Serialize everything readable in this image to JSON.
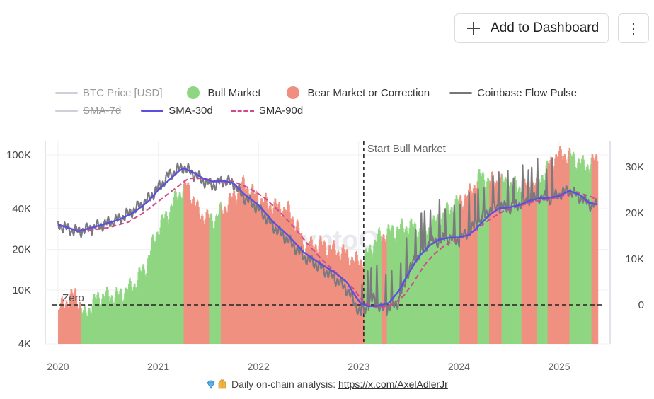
{
  "header": {
    "add_label": "Add to Dashboard",
    "plus_icon": "plus-icon",
    "more_icon": "kebab-menu-icon"
  },
  "legend": [
    {
      "label": "BTC Price [USD]",
      "type": "line",
      "color": "#cfcfd8",
      "hidden": true
    },
    {
      "label": "Bull Market",
      "type": "dot",
      "color": "#8ed681",
      "hidden": false
    },
    {
      "label": "Bear Market or Correction",
      "type": "dot",
      "color": "#ef8f80",
      "hidden": false
    },
    {
      "label": "Coinbase Flow Pulse",
      "type": "line",
      "color": "#777777",
      "hidden": false
    },
    {
      "label": "SMA-7d",
      "type": "line",
      "color": "#cfcfd8",
      "hidden": true
    },
    {
      "label": "SMA-30d",
      "type": "line",
      "color": "#5b4fe0",
      "hidden": false
    },
    {
      "label": "SMA-90d",
      "type": "dash",
      "color": "#d14a8b",
      "hidden": false
    }
  ],
  "annotations": {
    "zero_label": "Zero",
    "start_bull_label": "Start Bull Market",
    "start_bull_date": 2023.05,
    "watermark": "CryptoQuant"
  },
  "footer": {
    "text": "Daily on-chain analysis: ",
    "link": "https://x.com/AxelAdlerJr"
  },
  "chart_data": {
    "type": "area",
    "x_ticks": [
      2020,
      2021,
      2022,
      2023,
      2024,
      2025
    ],
    "x_tick_labels": [
      "2020",
      "2021",
      "2022",
      "2023",
      "2024",
      "2025"
    ],
    "xlim": [
      2019.95,
      2025.5
    ],
    "left_axis": {
      "scale": "log",
      "ticks": [
        4000,
        10000,
        20000,
        40000,
        100000
      ],
      "tick_labels": [
        "4K",
        "10K",
        "20K",
        "40K",
        "100K"
      ],
      "ylim": [
        4000,
        120000
      ]
    },
    "right_axis": {
      "scale": "linear",
      "ticks": [
        0,
        10000,
        20000,
        30000
      ],
      "tick_labels": [
        "0",
        "10K",
        "20K",
        "30K"
      ],
      "ylim": [
        -8500,
        35000
      ]
    },
    "regimes": [
      {
        "start": 2020.0,
        "end": 2020.22,
        "state": "bear"
      },
      {
        "start": 2020.22,
        "end": 2020.32,
        "state": "bull"
      },
      {
        "start": 2020.32,
        "end": 2021.25,
        "state": "bull"
      },
      {
        "start": 2021.25,
        "end": 2021.5,
        "state": "bear"
      },
      {
        "start": 2021.5,
        "end": 2021.62,
        "state": "bull"
      },
      {
        "start": 2021.62,
        "end": 2023.05,
        "state": "bear"
      },
      {
        "start": 2023.05,
        "end": 2023.22,
        "state": "bull"
      },
      {
        "start": 2023.22,
        "end": 2023.28,
        "state": "bear"
      },
      {
        "start": 2023.28,
        "end": 2024.0,
        "state": "bull"
      },
      {
        "start": 2024.0,
        "end": 2024.18,
        "state": "bear"
      },
      {
        "start": 2024.18,
        "end": 2024.3,
        "state": "bull"
      },
      {
        "start": 2024.3,
        "end": 2024.42,
        "state": "bear"
      },
      {
        "start": 2024.42,
        "end": 2024.62,
        "state": "bull"
      },
      {
        "start": 2024.62,
        "end": 2024.78,
        "state": "bear"
      },
      {
        "start": 2024.78,
        "end": 2024.88,
        "state": "bull"
      },
      {
        "start": 2024.88,
        "end": 2025.1,
        "state": "bear"
      },
      {
        "start": 2025.1,
        "end": 2025.32,
        "state": "bull"
      },
      {
        "start": 2025.32,
        "end": 2025.4,
        "state": "bear"
      }
    ],
    "btc_price": {
      "x": [
        2020.0,
        2020.17,
        2020.25,
        2020.4,
        2020.6,
        2020.75,
        2020.88,
        2021.0,
        2021.1,
        2021.18,
        2021.28,
        2021.4,
        2021.55,
        2021.7,
        2021.85,
        2022.0,
        2022.15,
        2022.3,
        2022.45,
        2022.6,
        2022.75,
        2022.85,
        2022.95,
        2023.05,
        2023.2,
        2023.35,
        2023.5,
        2023.65,
        2023.8,
        2023.95,
        2024.1,
        2024.2,
        2024.3,
        2024.45,
        2024.6,
        2024.75,
        2024.85,
        2024.95,
        2025.05,
        2025.15,
        2025.25,
        2025.38
      ],
      "values": [
        7200,
        9500,
        6500,
        9000,
        9200,
        11000,
        15500,
        29000,
        38000,
        50000,
        60000,
        37000,
        33000,
        45000,
        61000,
        47000,
        42000,
        39000,
        21000,
        22000,
        20000,
        19000,
        16500,
        17000,
        25000,
        28000,
        30000,
        27000,
        34000,
        43000,
        52000,
        70000,
        65000,
        63000,
        58000,
        61000,
        75000,
        97000,
        102000,
        95000,
        83000,
        94000
      ]
    },
    "coinbase_flow_pulse": {
      "x": [
        2020.0,
        2020.1,
        2020.2,
        2020.3,
        2020.45,
        2020.6,
        2020.75,
        2020.9,
        2021.0,
        2021.1,
        2021.2,
        2021.25,
        2021.35,
        2021.45,
        2021.55,
        2021.65,
        2021.75,
        2021.85,
        2022.0,
        2022.15,
        2022.3,
        2022.45,
        2022.6,
        2022.75,
        2022.88,
        2022.95,
        2023.02,
        2023.08,
        2023.15,
        2023.22,
        2023.3,
        2023.4,
        2023.5,
        2023.6,
        2023.7,
        2023.8,
        2023.9,
        2024.0,
        2024.1,
        2024.2,
        2024.3,
        2024.4,
        2024.5,
        2024.6,
        2024.7,
        2024.8,
        2024.9,
        2025.0,
        2025.1,
        2025.2,
        2025.3,
        2025.38
      ],
      "values": [
        17500,
        16500,
        16000,
        16500,
        17500,
        18500,
        20500,
        23000,
        25500,
        28000,
        29500,
        30000,
        28500,
        27000,
        26000,
        27000,
        26500,
        23500,
        21000,
        17000,
        14000,
        10500,
        8500,
        6000,
        3500,
        800,
        -2000,
        -500,
        1500,
        -1000,
        -600,
        800,
        7500,
        11000,
        13500,
        14000,
        14500,
        14000,
        16000,
        18000,
        20500,
        21500,
        21000,
        22000,
        22500,
        23500,
        23000,
        24000,
        25000,
        23500,
        22000,
        21500
      ]
    },
    "sma_30d": {
      "x": [
        2020.0,
        2020.1,
        2020.2,
        2020.3,
        2020.45,
        2020.6,
        2020.75,
        2020.9,
        2021.0,
        2021.1,
        2021.2,
        2021.25,
        2021.35,
        2021.45,
        2021.55,
        2021.65,
        2021.75,
        2021.85,
        2022.0,
        2022.15,
        2022.3,
        2022.45,
        2022.6,
        2022.75,
        2022.88,
        2022.95,
        2023.02,
        2023.1,
        2023.2,
        2023.3,
        2023.4,
        2023.5,
        2023.6,
        2023.7,
        2023.8,
        2023.9,
        2024.0,
        2024.1,
        2024.2,
        2024.3,
        2024.4,
        2024.5,
        2024.6,
        2024.7,
        2024.8,
        2024.9,
        2025.0,
        2025.1,
        2025.2,
        2025.3,
        2025.38
      ],
      "values": [
        17500,
        16800,
        16000,
        16600,
        17500,
        18500,
        20000,
        22500,
        25000,
        27000,
        29000,
        29700,
        28800,
        27500,
        26800,
        27000,
        26500,
        24200,
        21700,
        18000,
        15000,
        11500,
        9200,
        7200,
        5000,
        2500,
        300,
        -300,
        -200,
        400,
        3000,
        7000,
        10500,
        12800,
        14200,
        14600,
        14700,
        15200,
        17200,
        19500,
        21000,
        21200,
        21700,
        22600,
        23200,
        23300,
        23700,
        24800,
        24000,
        22200,
        21800
      ]
    },
    "sma_90d": {
      "x": [
        2020.0,
        2020.15,
        2020.3,
        2020.5,
        2020.7,
        2020.85,
        2021.0,
        2021.15,
        2021.3,
        2021.45,
        2021.6,
        2021.75,
        2021.9,
        2022.05,
        2022.2,
        2022.35,
        2022.5,
        2022.65,
        2022.8,
        2022.95,
        2023.05,
        2023.15,
        2023.25,
        2023.35,
        2023.45,
        2023.55,
        2023.65,
        2023.75,
        2023.85,
        2024.0,
        2024.15,
        2024.3,
        2024.45,
        2024.6,
        2024.75,
        2024.9,
        2025.05,
        2025.2,
        2025.3,
        2025.38
      ],
      "values": [
        17500,
        16500,
        16200,
        16800,
        18000,
        20000,
        22500,
        25000,
        27500,
        27500,
        26800,
        26800,
        25500,
        23500,
        20500,
        17000,
        13000,
        9500,
        6500,
        3500,
        500,
        -400,
        -400,
        200,
        2000,
        5000,
        8500,
        11000,
        12800,
        14500,
        16000,
        18500,
        20500,
        21500,
        22500,
        23000,
        23800,
        24300,
        23700,
        22900
      ]
    }
  }
}
